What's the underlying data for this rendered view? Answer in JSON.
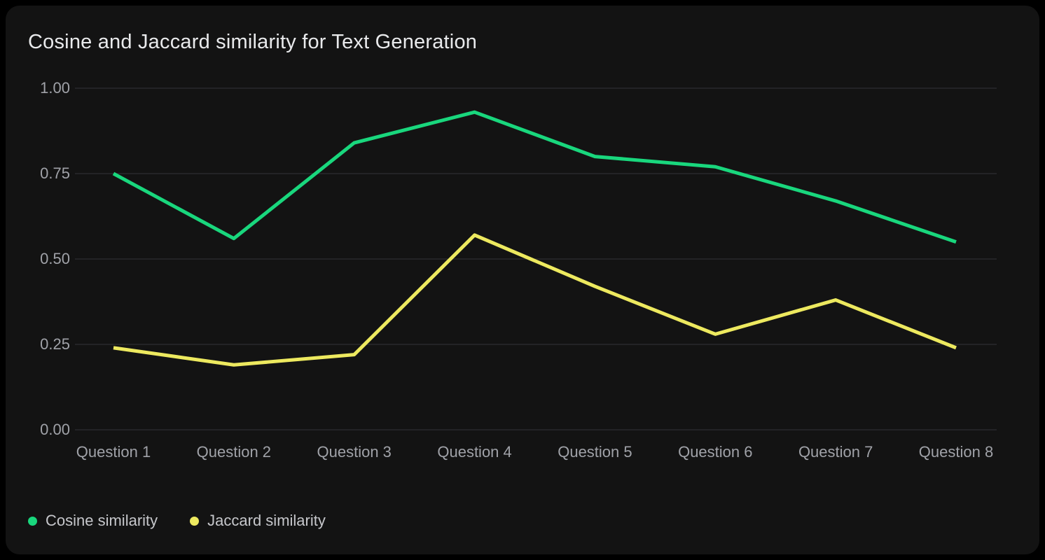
{
  "colors": {
    "background": "#000000",
    "card_background": "#131313",
    "grid": "#333338",
    "axis_text": "#a0a2a8",
    "legend_text": "#c6c7cb",
    "title_text": "#e9eaec",
    "cosine_green": "#19d77d",
    "jaccard_yellow": "#ede95f"
  },
  "chart_data": {
    "type": "line",
    "title": "Cosine and Jaccard similarity for Text Generation",
    "categories": [
      "Question 1",
      "Question 2",
      "Question 3",
      "Question 4",
      "Question 5",
      "Question 6",
      "Question 7",
      "Question 8"
    ],
    "series": [
      {
        "name": "Cosine similarity",
        "color": "#19d77d",
        "values": [
          0.75,
          0.56,
          0.84,
          0.93,
          0.8,
          0.77,
          0.67,
          0.55
        ]
      },
      {
        "name": "Jaccard similarity",
        "color": "#ede95f",
        "values": [
          0.24,
          0.19,
          0.22,
          0.57,
          0.42,
          0.28,
          0.38,
          0.24
        ]
      }
    ],
    "xlabel": "",
    "ylabel": "",
    "ylim": [
      0,
      1
    ],
    "yticks": [
      0,
      0.25,
      0.5,
      0.75,
      1
    ],
    "ytick_labels": [
      "0.00",
      "0.25",
      "0.50",
      "0.75",
      "1.00"
    ],
    "grid": "horizontal",
    "legend_position": "bottom-left"
  }
}
